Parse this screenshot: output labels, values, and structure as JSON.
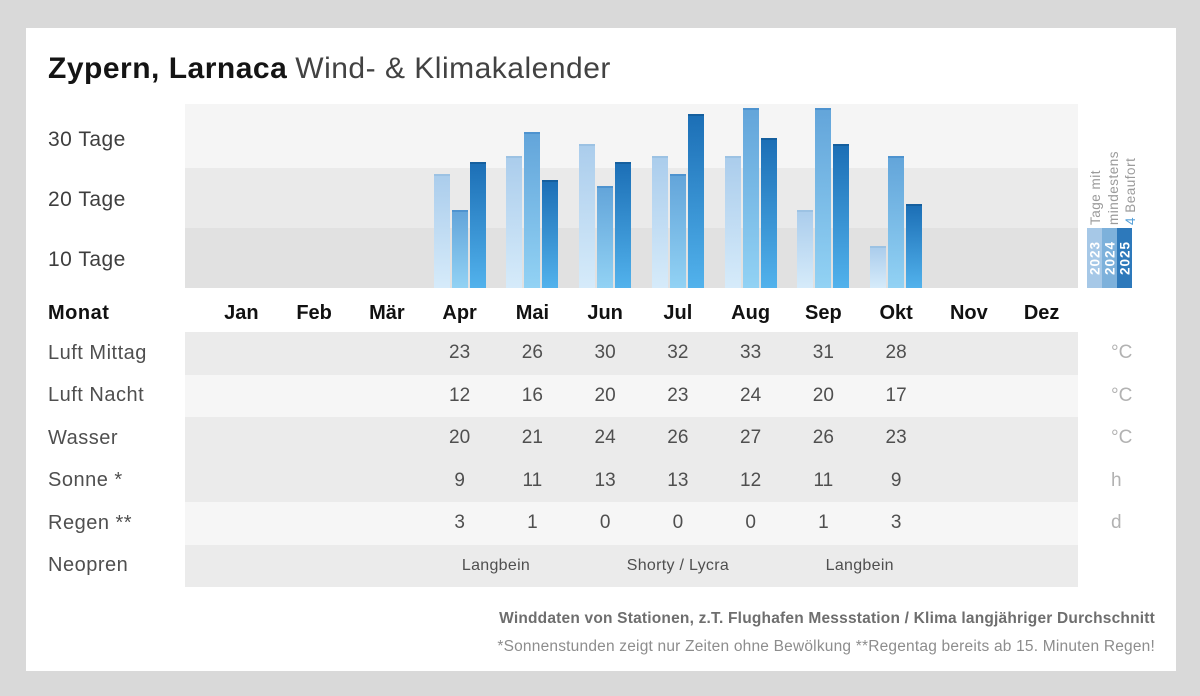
{
  "title": {
    "location": "Zypern, Larnaca",
    "subtitle": "Wind- & Klimakalender"
  },
  "chart_data": {
    "type": "bar",
    "title": "Tage mit mindestens 4 Beaufort",
    "categories": [
      "Jan",
      "Feb",
      "Mär",
      "Apr",
      "Mai",
      "Jun",
      "Jul",
      "Aug",
      "Sep",
      "Okt",
      "Nov",
      "Dez"
    ],
    "series": [
      {
        "name": "2023",
        "legend_color": "#a6c8e7",
        "bar_top": "#abcdec",
        "bar_bottom": "#d6ebfa",
        "bar_cap": "#9cc2e3",
        "values": [
          null,
          null,
          null,
          19,
          22,
          24,
          22,
          22,
          13,
          7,
          null,
          null
        ]
      },
      {
        "name": "2024",
        "legend_color": "#7db1db",
        "bar_top": "#63a5da",
        "bar_bottom": "#92d2f4",
        "bar_cap": "#4e93cf",
        "values": [
          null,
          null,
          null,
          13,
          26,
          17,
          19,
          30,
          30,
          22,
          null,
          null
        ]
      },
      {
        "name": "2025",
        "legend_color": "#2d79bb",
        "bar_top": "#1c6fb6",
        "bar_bottom": "#52b2ec",
        "bar_cap": "#155f9e",
        "values": [
          null,
          null,
          null,
          21,
          18,
          21,
          29,
          25,
          24,
          14,
          null,
          null
        ]
      }
    ],
    "ylabel": "Tage",
    "ylim": [
      0,
      31
    ],
    "yticks": [
      "30 Tage",
      "20 Tage",
      "10 Tage"
    ],
    "grid": "horizontal shaded bands of 10 days",
    "legend_position": "right, rotated 90 degrees",
    "legend": {
      "line1": "Tage mit",
      "line2": "mindestens",
      "beaufort_number": "4",
      "beaufort_text": "Beaufort",
      "highlight_color": "#56a0d8"
    }
  },
  "table": {
    "header_label": "Monat",
    "months": [
      "Jan",
      "Feb",
      "Mär",
      "Apr",
      "Mai",
      "Jun",
      "Jul",
      "Aug",
      "Sep",
      "Okt",
      "Nov",
      "Dez"
    ],
    "rows": [
      {
        "label": "Luft Mittag",
        "unit": "°C",
        "shaded": true,
        "values": [
          "",
          "",
          "",
          "23",
          "26",
          "30",
          "32",
          "33",
          "31",
          "28",
          "",
          ""
        ]
      },
      {
        "label": "Luft Nacht",
        "unit": "°C",
        "shaded": false,
        "values": [
          "",
          "",
          "",
          "12",
          "16",
          "20",
          "23",
          "24",
          "20",
          "17",
          "",
          ""
        ]
      },
      {
        "label": "Wasser",
        "unit": "°C",
        "shaded": true,
        "values": [
          "",
          "",
          "",
          "20",
          "21",
          "24",
          "26",
          "27",
          "26",
          "23",
          "",
          ""
        ]
      },
      {
        "label": "Sonne *",
        "unit": "h",
        "shaded": true,
        "values": [
          "",
          "",
          "",
          "9",
          "11",
          "13",
          "13",
          "12",
          "11",
          "9",
          "",
          ""
        ]
      },
      {
        "label": "Regen **",
        "unit": "d",
        "shaded": false,
        "values": [
          "",
          "",
          "",
          "3",
          "1",
          "0",
          "0",
          "0",
          "1",
          "3",
          "",
          ""
        ]
      },
      {
        "label": "Neopren",
        "unit": "",
        "shaded": true,
        "spans": [
          {
            "text": "Langbein",
            "start_month": 3,
            "end_month": 4
          },
          {
            "text": "Shorty / Lycra",
            "start_month": 5,
            "end_month": 7
          },
          {
            "text": "Langbein",
            "start_month": 8,
            "end_month": 9
          }
        ]
      }
    ],
    "row_shade_color": "#ebebeb",
    "row_light_color": "#f6f6f6"
  },
  "footer": {
    "line1": "Winddaten von Stationen, z.T. Flughafen Messstation / Klima langjähriger Durchschnitt",
    "line2": "*Sonnenstunden zeigt nur Zeiten ohne Bewölkung  **Regentag bereits ab 15. Minuten Regen!"
  }
}
